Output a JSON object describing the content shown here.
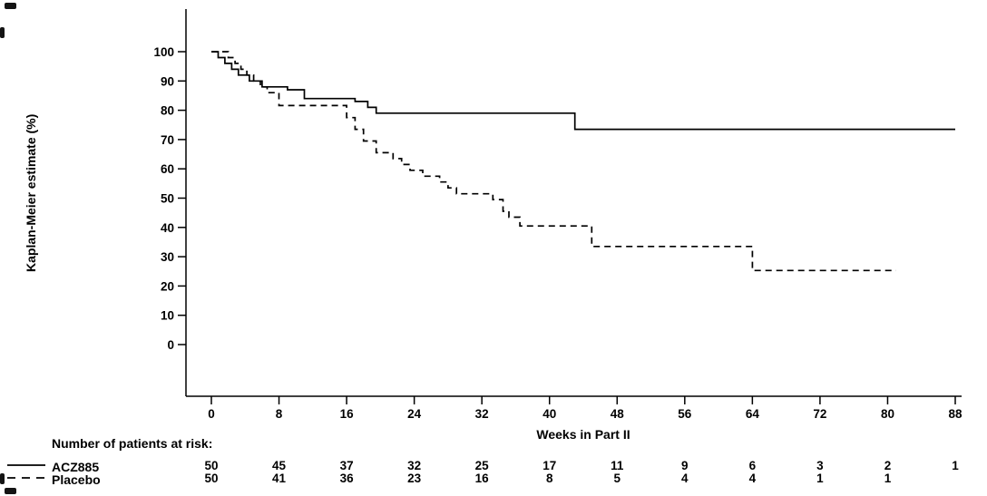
{
  "chart_data": {
    "type": "line",
    "chart_kind": "kaplan-meier-step",
    "title": "",
    "xlabel": "Weeks in Part II",
    "ylabel": "Kaplan-Meier estimate (%)",
    "xlim": [
      0,
      88
    ],
    "ylim": [
      0,
      100
    ],
    "x_ticks": [
      0,
      8,
      16,
      24,
      32,
      40,
      48,
      56,
      64,
      72,
      80,
      88
    ],
    "y_ticks": [
      0,
      10,
      20,
      30,
      40,
      50,
      60,
      70,
      80,
      90,
      100
    ],
    "grid": false,
    "legend_position": "bottom-left",
    "line_color": "#000000",
    "background": "#ffffff",
    "series": [
      {
        "name": "ACZ885",
        "style": "solid",
        "start": 100,
        "end_week": 88,
        "steps": [
          [
            0.8,
            98
          ],
          [
            1.6,
            96
          ],
          [
            2.4,
            94
          ],
          [
            3.2,
            92
          ],
          [
            4.5,
            90
          ],
          [
            6,
            88
          ],
          [
            9,
            87
          ],
          [
            11,
            84
          ],
          [
            17,
            83
          ],
          [
            18.5,
            81
          ],
          [
            19.5,
            79
          ],
          [
            43,
            73.5
          ]
        ]
      },
      {
        "name": "Placebo",
        "style": "dashed",
        "start": 100,
        "end_week": 81,
        "steps": [
          [
            2,
            98
          ],
          [
            2.8,
            96
          ],
          [
            3.5,
            94
          ],
          [
            4.2,
            92
          ],
          [
            5,
            90
          ],
          [
            5.8,
            88
          ],
          [
            6.6,
            86
          ],
          [
            8,
            81.6
          ],
          [
            16,
            77.5
          ],
          [
            17,
            73.5
          ],
          [
            18,
            69.5
          ],
          [
            19.5,
            65.5
          ],
          [
            21.5,
            63.5
          ],
          [
            22.5,
            61.5
          ],
          [
            23.5,
            59.5
          ],
          [
            25,
            57.5
          ],
          [
            27,
            55.5
          ],
          [
            28,
            53.5
          ],
          [
            29,
            51.5
          ],
          [
            33.3,
            49.5
          ],
          [
            34.5,
            45.5
          ],
          [
            35.2,
            43.5
          ],
          [
            36.5,
            40.5
          ],
          [
            45,
            33.5
          ],
          [
            64,
            25.3
          ]
        ]
      }
    ],
    "risk_table": {
      "title": "Number of patients at risk:",
      "weeks": [
        0,
        8,
        16,
        24,
        32,
        40,
        48,
        56,
        64,
        72,
        80,
        88
      ],
      "rows": [
        {
          "name": "ACZ885",
          "style": "solid",
          "counts": [
            50,
            45,
            37,
            32,
            25,
            17,
            11,
            9,
            6,
            3,
            2,
            1
          ]
        },
        {
          "name": "Placebo",
          "style": "dashed",
          "counts": [
            50,
            41,
            36,
            23,
            16,
            8,
            5,
            4,
            4,
            1,
            1
          ]
        }
      ]
    }
  }
}
